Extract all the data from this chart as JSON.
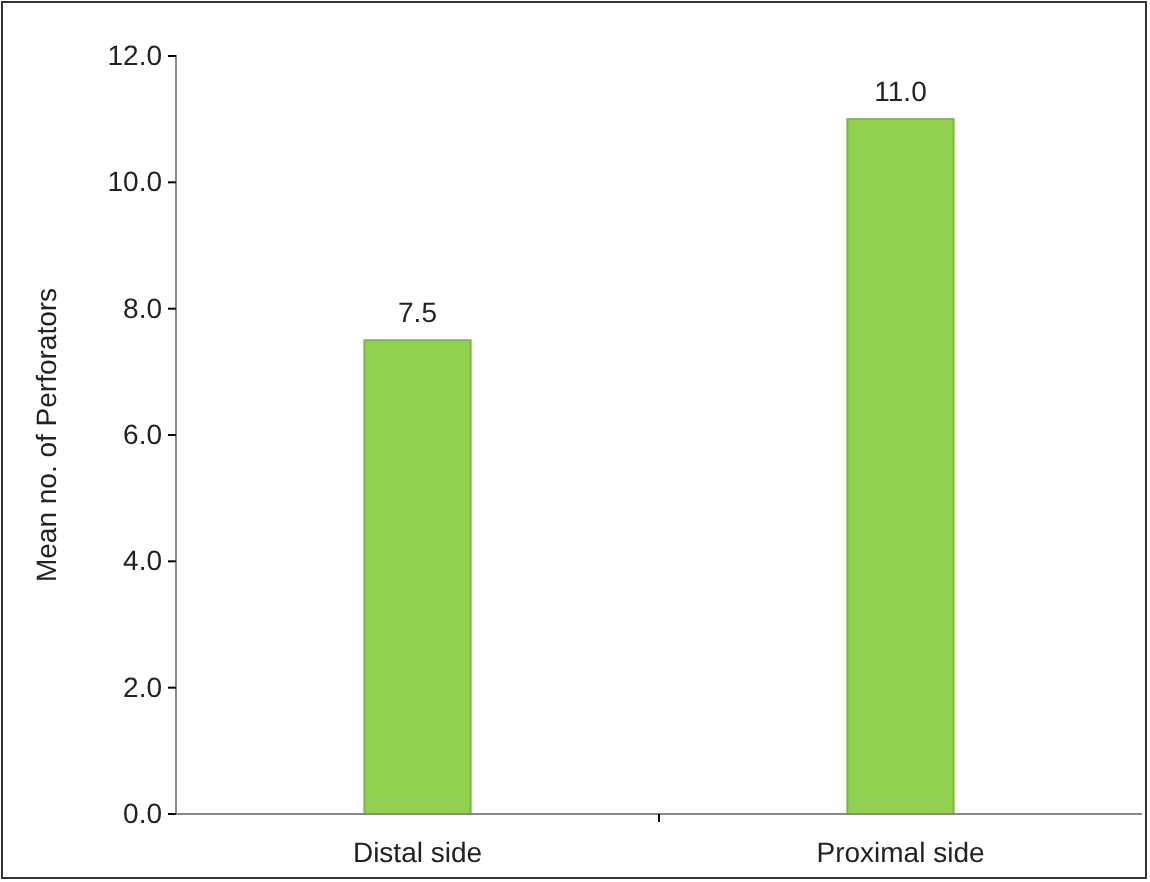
{
  "chart_data": {
    "type": "bar",
    "ylabel": "Mean no. of Perforators",
    "categories": [
      "Distal side",
      "Proximal side"
    ],
    "values": [
      7.5,
      11.0
    ],
    "color": "#92d050",
    "value_labels": [
      "7.5",
      "11.0"
    ],
    "ylim": [
      0,
      12
    ],
    "yticks": [
      {
        "value": 0,
        "label": "0.0"
      },
      {
        "value": 2,
        "label": "2.0"
      },
      {
        "value": 4,
        "label": "4.0"
      },
      {
        "value": 6,
        "label": "6.0"
      },
      {
        "value": 8,
        "label": "8.0"
      },
      {
        "value": 10,
        "label": "10.0"
      },
      {
        "value": 12,
        "label": "12.0"
      }
    ],
    "grid": false
  }
}
